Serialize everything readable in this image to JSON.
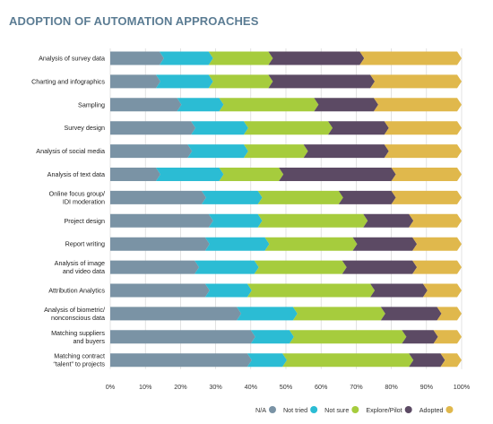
{
  "chart_data": {
    "type": "bar",
    "orientation": "horizontal",
    "stacked": true,
    "title": "ADOPTION OF AUTOMATION APPROACHES",
    "categories": [
      [
        "Analysis of survey data"
      ],
      [
        "Charting and infographics"
      ],
      [
        "Sampling"
      ],
      [
        "Survey design"
      ],
      [
        "Analysis of social media"
      ],
      [
        "Analysis of text data"
      ],
      [
        "Online focus group/",
        "IDI moderation"
      ],
      [
        "Project design"
      ],
      [
        "Report writing"
      ],
      [
        "Analysis of image",
        "and video data"
      ],
      [
        "Attribution Analytics"
      ],
      [
        "Analysis of biometric/",
        "nonconscious data"
      ],
      [
        "Matching suppliers",
        "and buyers"
      ],
      [
        "Matching contract",
        "“talent” to projects"
      ]
    ],
    "series": [
      {
        "name": "N/A",
        "color": "#7a93a5",
        "values": [
          14,
          13,
          19,
          23,
          22,
          13,
          26,
          28,
          27,
          24,
          27,
          36,
          40,
          39
        ]
      },
      {
        "name": "Not tried",
        "color": "#2bbcd4",
        "values": [
          14,
          15,
          12,
          15,
          16,
          18,
          16,
          14,
          17,
          17,
          12,
          16,
          11,
          10
        ]
      },
      {
        "name": "Not sure",
        "color": "#a6cc3d",
        "values": [
          17,
          17,
          27,
          24,
          17,
          17,
          23,
          30,
          25,
          25,
          35,
          25,
          32,
          36
        ]
      },
      {
        "name": "Explore/Pilot",
        "color": "#5c4a64",
        "values": [
          26,
          29,
          17,
          16,
          23,
          32,
          15,
          13,
          17,
          20,
          15,
          16,
          9,
          9
        ]
      },
      {
        "name": "Adopted",
        "color": "#e0b84c",
        "values": [
          29,
          26,
          25,
          22,
          22,
          20,
          20,
          15,
          14,
          14,
          11,
          7,
          8,
          6
        ]
      }
    ],
    "xaxis": {
      "range": [
        0,
        100
      ],
      "ticks": [
        "0%",
        "10%",
        "20%",
        "30%",
        "40%",
        "50%",
        "60%",
        "70%",
        "80%",
        "90%",
        "100%"
      ]
    },
    "grid": true,
    "legend": {
      "position": "bottom-right"
    }
  }
}
